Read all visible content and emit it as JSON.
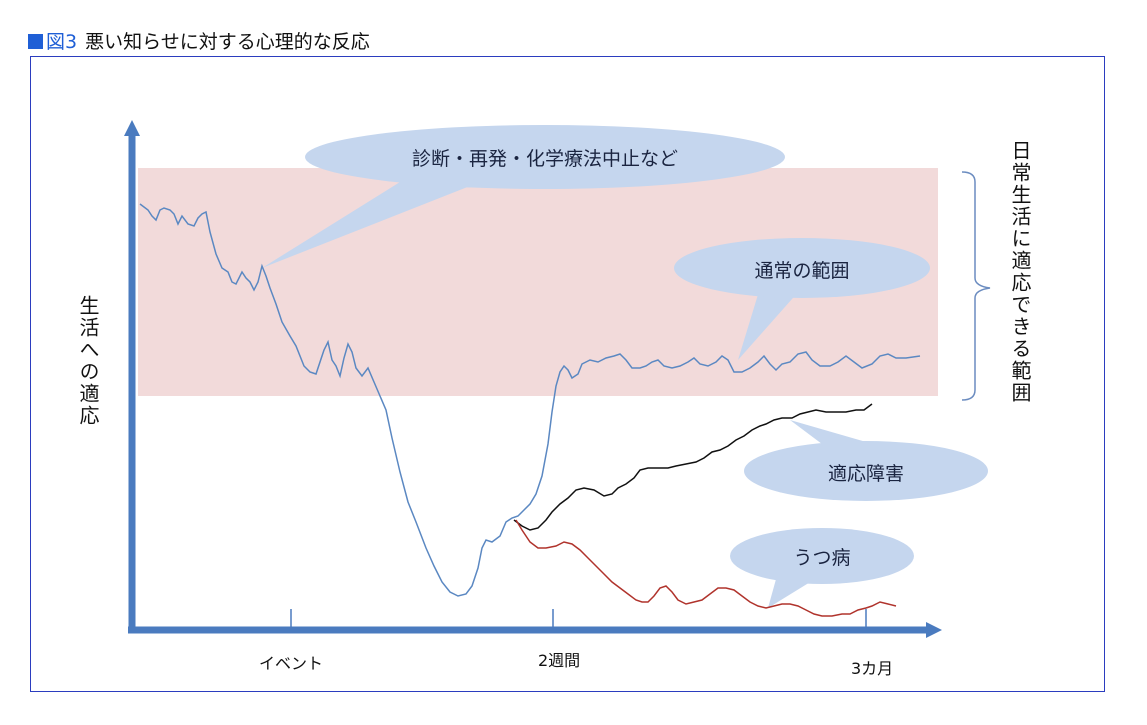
{
  "title": {
    "marker_color": "#1f5fd6",
    "figure_no": "図3",
    "text": "悪い知らせに対する心理的な反応"
  },
  "axes": {
    "ylabel": "生活への適応",
    "x_ticks": [
      "イベント",
      "2週間",
      "3カ月"
    ]
  },
  "band": {
    "label": "日常生活に適応できる範囲",
    "color": "#f2dada"
  },
  "callouts": {
    "event": "診断・再発・化学療法中止など",
    "normal": "通常の範囲",
    "adjustment": "適応障害",
    "depression": "うつ病"
  },
  "colors": {
    "axis": "#4a7bbf",
    "normal_line": "#5b88c2",
    "adjustment_line": "#111111",
    "depression_line": "#b0332c",
    "bubble_fill": "#c5d6ee"
  }
}
